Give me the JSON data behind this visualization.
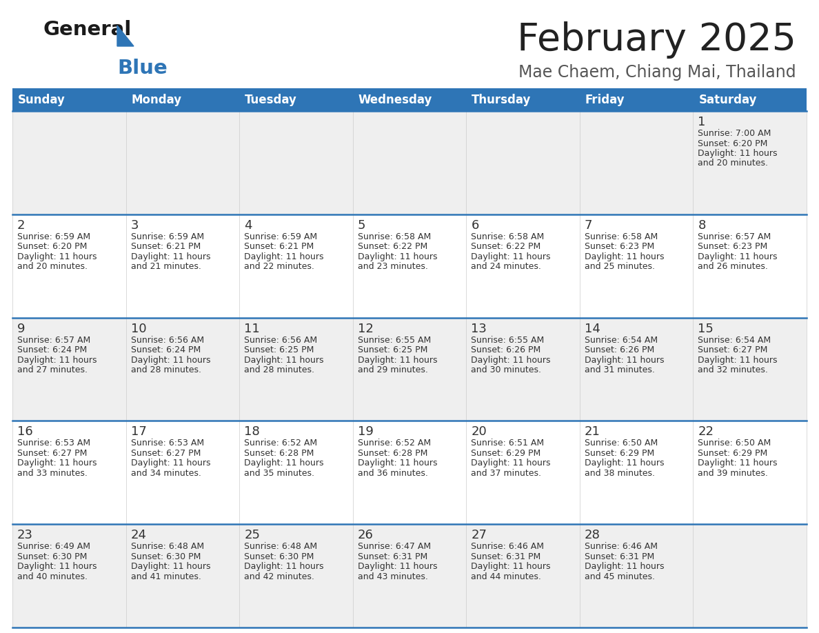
{
  "title": "February 2025",
  "subtitle": "Mae Chaem, Chiang Mai, Thailand",
  "header_color": "#2e75b6",
  "header_text_color": "#ffffff",
  "cell_bg_light": "#efefef",
  "cell_bg_white": "#ffffff",
  "day_names": [
    "Sunday",
    "Monday",
    "Tuesday",
    "Wednesday",
    "Thursday",
    "Friday",
    "Saturday"
  ],
  "title_color": "#222222",
  "subtitle_color": "#555555",
  "line_color": "#2e75b6",
  "days": [
    {
      "day": 1,
      "col": 6,
      "row": 0,
      "sunrise": "7:00 AM",
      "sunset": "6:20 PM",
      "daylight_hours": 11,
      "daylight_minutes": 20
    },
    {
      "day": 2,
      "col": 0,
      "row": 1,
      "sunrise": "6:59 AM",
      "sunset": "6:20 PM",
      "daylight_hours": 11,
      "daylight_minutes": 20
    },
    {
      "day": 3,
      "col": 1,
      "row": 1,
      "sunrise": "6:59 AM",
      "sunset": "6:21 PM",
      "daylight_hours": 11,
      "daylight_minutes": 21
    },
    {
      "day": 4,
      "col": 2,
      "row": 1,
      "sunrise": "6:59 AM",
      "sunset": "6:21 PM",
      "daylight_hours": 11,
      "daylight_minutes": 22
    },
    {
      "day": 5,
      "col": 3,
      "row": 1,
      "sunrise": "6:58 AM",
      "sunset": "6:22 PM",
      "daylight_hours": 11,
      "daylight_minutes": 23
    },
    {
      "day": 6,
      "col": 4,
      "row": 1,
      "sunrise": "6:58 AM",
      "sunset": "6:22 PM",
      "daylight_hours": 11,
      "daylight_minutes": 24
    },
    {
      "day": 7,
      "col": 5,
      "row": 1,
      "sunrise": "6:58 AM",
      "sunset": "6:23 PM",
      "daylight_hours": 11,
      "daylight_minutes": 25
    },
    {
      "day": 8,
      "col": 6,
      "row": 1,
      "sunrise": "6:57 AM",
      "sunset": "6:23 PM",
      "daylight_hours": 11,
      "daylight_minutes": 26
    },
    {
      "day": 9,
      "col": 0,
      "row": 2,
      "sunrise": "6:57 AM",
      "sunset": "6:24 PM",
      "daylight_hours": 11,
      "daylight_minutes": 27
    },
    {
      "day": 10,
      "col": 1,
      "row": 2,
      "sunrise": "6:56 AM",
      "sunset": "6:24 PM",
      "daylight_hours": 11,
      "daylight_minutes": 28
    },
    {
      "day": 11,
      "col": 2,
      "row": 2,
      "sunrise": "6:56 AM",
      "sunset": "6:25 PM",
      "daylight_hours": 11,
      "daylight_minutes": 28
    },
    {
      "day": 12,
      "col": 3,
      "row": 2,
      "sunrise": "6:55 AM",
      "sunset": "6:25 PM",
      "daylight_hours": 11,
      "daylight_minutes": 29
    },
    {
      "day": 13,
      "col": 4,
      "row": 2,
      "sunrise": "6:55 AM",
      "sunset": "6:26 PM",
      "daylight_hours": 11,
      "daylight_minutes": 30
    },
    {
      "day": 14,
      "col": 5,
      "row": 2,
      "sunrise": "6:54 AM",
      "sunset": "6:26 PM",
      "daylight_hours": 11,
      "daylight_minutes": 31
    },
    {
      "day": 15,
      "col": 6,
      "row": 2,
      "sunrise": "6:54 AM",
      "sunset": "6:27 PM",
      "daylight_hours": 11,
      "daylight_minutes": 32
    },
    {
      "day": 16,
      "col": 0,
      "row": 3,
      "sunrise": "6:53 AM",
      "sunset": "6:27 PM",
      "daylight_hours": 11,
      "daylight_minutes": 33
    },
    {
      "day": 17,
      "col": 1,
      "row": 3,
      "sunrise": "6:53 AM",
      "sunset": "6:27 PM",
      "daylight_hours": 11,
      "daylight_minutes": 34
    },
    {
      "day": 18,
      "col": 2,
      "row": 3,
      "sunrise": "6:52 AM",
      "sunset": "6:28 PM",
      "daylight_hours": 11,
      "daylight_minutes": 35
    },
    {
      "day": 19,
      "col": 3,
      "row": 3,
      "sunrise": "6:52 AM",
      "sunset": "6:28 PM",
      "daylight_hours": 11,
      "daylight_minutes": 36
    },
    {
      "day": 20,
      "col": 4,
      "row": 3,
      "sunrise": "6:51 AM",
      "sunset": "6:29 PM",
      "daylight_hours": 11,
      "daylight_minutes": 37
    },
    {
      "day": 21,
      "col": 5,
      "row": 3,
      "sunrise": "6:50 AM",
      "sunset": "6:29 PM",
      "daylight_hours": 11,
      "daylight_minutes": 38
    },
    {
      "day": 22,
      "col": 6,
      "row": 3,
      "sunrise": "6:50 AM",
      "sunset": "6:29 PM",
      "daylight_hours": 11,
      "daylight_minutes": 39
    },
    {
      "day": 23,
      "col": 0,
      "row": 4,
      "sunrise": "6:49 AM",
      "sunset": "6:30 PM",
      "daylight_hours": 11,
      "daylight_minutes": 40
    },
    {
      "day": 24,
      "col": 1,
      "row": 4,
      "sunrise": "6:48 AM",
      "sunset": "6:30 PM",
      "daylight_hours": 11,
      "daylight_minutes": 41
    },
    {
      "day": 25,
      "col": 2,
      "row": 4,
      "sunrise": "6:48 AM",
      "sunset": "6:30 PM",
      "daylight_hours": 11,
      "daylight_minutes": 42
    },
    {
      "day": 26,
      "col": 3,
      "row": 4,
      "sunrise": "6:47 AM",
      "sunset": "6:31 PM",
      "daylight_hours": 11,
      "daylight_minutes": 43
    },
    {
      "day": 27,
      "col": 4,
      "row": 4,
      "sunrise": "6:46 AM",
      "sunset": "6:31 PM",
      "daylight_hours": 11,
      "daylight_minutes": 44
    },
    {
      "day": 28,
      "col": 5,
      "row": 4,
      "sunrise": "6:46 AM",
      "sunset": "6:31 PM",
      "daylight_hours": 11,
      "daylight_minutes": 45
    }
  ]
}
